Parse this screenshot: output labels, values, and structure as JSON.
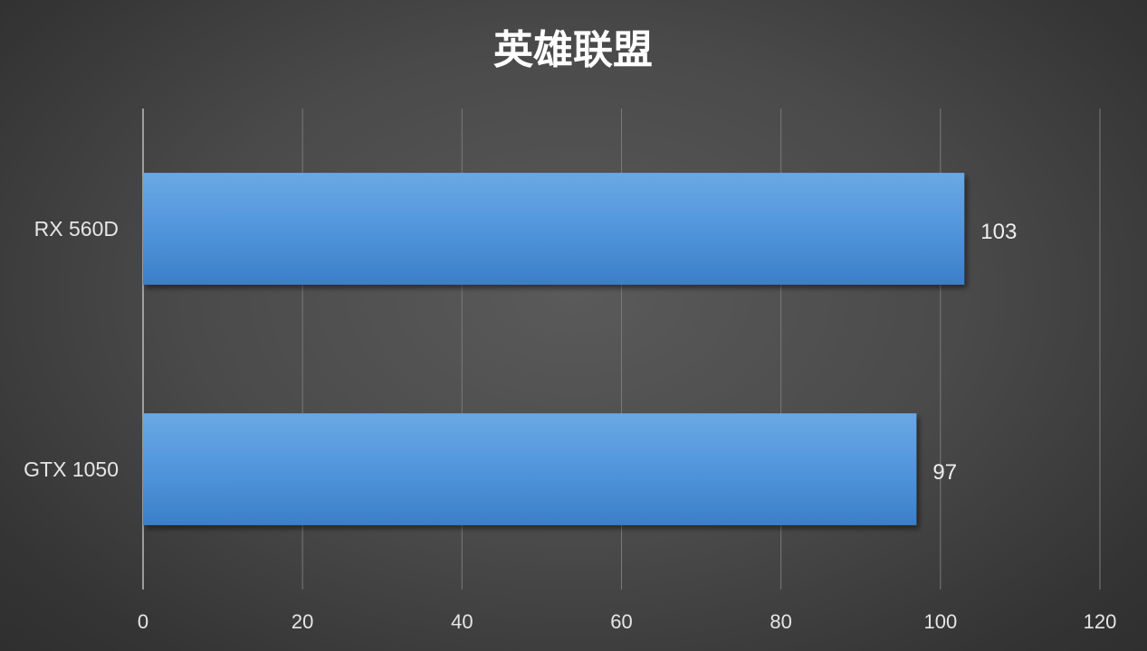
{
  "chart_data": {
    "type": "bar",
    "orientation": "horizontal",
    "title": "英雄联盟",
    "categories": [
      "RX 560D",
      "GTX 1050"
    ],
    "values": [
      103,
      97
    ],
    "xlim": [
      0,
      120
    ],
    "xticks": [
      0,
      20,
      40,
      60,
      80,
      100,
      120
    ],
    "xlabel": "",
    "ylabel": "",
    "grid": true,
    "legend": "none",
    "bar_color": "#4f93db",
    "data_labels": true
  }
}
